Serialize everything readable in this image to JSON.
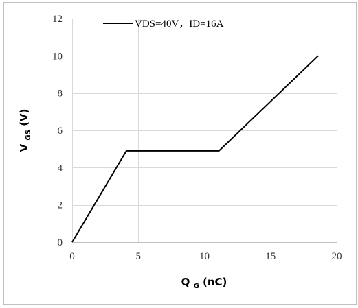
{
  "chart_data": {
    "type": "line",
    "title": "",
    "xlabel": {
      "main": "Q",
      "sub": "G",
      "unit": " (nC)"
    },
    "ylabel": {
      "main": "V",
      "sub": "GS",
      "unit": " (V)"
    },
    "xlim": [
      0,
      20
    ],
    "ylim": [
      0,
      12
    ],
    "xticks": [
      0,
      5,
      10,
      15,
      20
    ],
    "yticks": [
      0,
      2,
      4,
      6,
      8,
      10,
      12
    ],
    "grid": true,
    "legend": {
      "placement": "top-center"
    },
    "series": [
      {
        "name": "VDS=40V，ID=16A",
        "color": "#000000",
        "x": [
          0,
          4.1,
          11.1,
          18.6
        ],
        "y": [
          0,
          4.9,
          4.9,
          10
        ]
      }
    ]
  }
}
